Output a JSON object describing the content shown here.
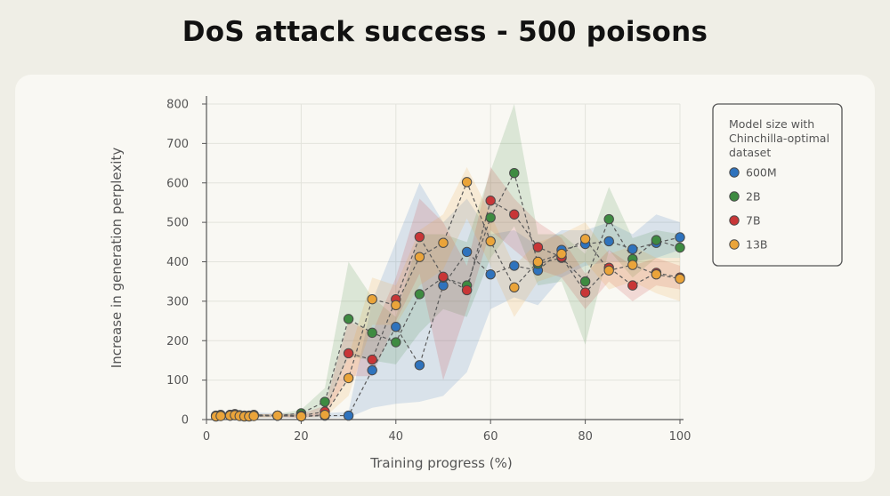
{
  "header": {
    "title": "DoS attack success - 500 poisons"
  },
  "colors": {
    "600M": "#2f73bd",
    "2B": "#3e8b41",
    "7B": "#c83637",
    "13B": "#eaa43a",
    "axis": "#555555",
    "grid": "#e3e3dc"
  },
  "chart_data": {
    "type": "line",
    "title": "DoS attack success - 500 poisons",
    "xlabel": "Training progress (%)",
    "ylabel": "Increase in generation perplexity",
    "xlim": [
      0,
      100
    ],
    "ylim": [
      0,
      800
    ],
    "xticks": [
      0,
      20,
      40,
      60,
      80,
      100
    ],
    "yticks": [
      0,
      100,
      200,
      300,
      400,
      500,
      600,
      700,
      800
    ],
    "grid": true,
    "legend": {
      "title": "Model size with Chinchilla-optimal dataset",
      "title_lines": [
        "Model size with",
        "Chinchilla-optimal",
        "dataset"
      ],
      "position": "right",
      "entries": [
        "600M",
        "2B",
        "7B",
        "13B"
      ]
    },
    "series": [
      {
        "name": "600M",
        "color": "#2f73bd",
        "x": [
          2,
          3,
          5,
          6,
          7,
          8,
          9,
          10,
          15,
          20,
          25,
          30,
          35,
          40,
          45,
          50,
          55,
          60,
          65,
          70,
          75,
          80,
          85,
          90,
          95,
          100
        ],
        "y": [
          8,
          10,
          12,
          14,
          10,
          8,
          10,
          12,
          10,
          8,
          10,
          10,
          125,
          235,
          138,
          340,
          425,
          368,
          390,
          378,
          430,
          445,
          452,
          432,
          448,
          462
        ],
        "lower": [
          4,
          5,
          6,
          7,
          5,
          4,
          5,
          6,
          5,
          4,
          5,
          5,
          30,
          40,
          45,
          60,
          120,
          280,
          310,
          290,
          360,
          390,
          400,
          400,
          410,
          430
        ],
        "upper": [
          14,
          16,
          18,
          20,
          16,
          14,
          16,
          18,
          16,
          14,
          16,
          20,
          300,
          450,
          600,
          500,
          560,
          470,
          480,
          440,
          480,
          480,
          500,
          470,
          520,
          500
        ]
      },
      {
        "name": "2B",
        "color": "#3e8b41",
        "x": [
          2,
          3,
          5,
          6,
          7,
          8,
          9,
          10,
          15,
          20,
          25,
          30,
          35,
          40,
          45,
          50,
          55,
          60,
          65,
          70,
          75,
          80,
          85,
          90,
          95,
          100
        ],
        "y": [
          10,
          12,
          10,
          12,
          11,
          10,
          9,
          10,
          10,
          16,
          45,
          255,
          220,
          196,
          318,
          360,
          340,
          512,
          625,
          395,
          410,
          350,
          508,
          407,
          455,
          436
        ],
        "lower": [
          6,
          7,
          6,
          7,
          6,
          6,
          5,
          6,
          6,
          10,
          20,
          160,
          150,
          140,
          220,
          280,
          260,
          410,
          490,
          340,
          350,
          190,
          430,
          360,
          410,
          410
        ],
        "upper": [
          14,
          16,
          14,
          16,
          15,
          14,
          13,
          14,
          14,
          25,
          80,
          400,
          310,
          260,
          470,
          470,
          450,
          630,
          800,
          470,
          470,
          420,
          590,
          460,
          480,
          470
        ]
      },
      {
        "name": "7B",
        "color": "#c83637",
        "x": [
          2,
          3,
          5,
          6,
          7,
          8,
          9,
          10,
          15,
          20,
          25,
          30,
          35,
          40,
          45,
          50,
          55,
          60,
          65,
          70,
          75,
          80,
          85,
          90,
          95,
          100
        ],
        "y": [
          9,
          10,
          12,
          13,
          10,
          9,
          8,
          10,
          10,
          10,
          20,
          168,
          152,
          305,
          463,
          362,
          328,
          555,
          520,
          437,
          412,
          322,
          385,
          340,
          372,
          360
        ],
        "lower": [
          5,
          6,
          7,
          8,
          6,
          5,
          4,
          6,
          6,
          5,
          10,
          110,
          110,
          250,
          370,
          100,
          280,
          480,
          430,
          380,
          360,
          280,
          350,
          300,
          340,
          330
        ],
        "upper": [
          13,
          14,
          17,
          18,
          14,
          13,
          12,
          14,
          14,
          15,
          35,
          250,
          220,
          360,
          560,
          500,
          390,
          640,
          560,
          500,
          460,
          370,
          430,
          390,
          410,
          390
        ]
      },
      {
        "name": "13B",
        "color": "#eaa43a",
        "x": [
          2,
          3,
          5,
          6,
          7,
          8,
          9,
          10,
          15,
          20,
          25,
          30,
          35,
          40,
          45,
          50,
          55,
          60,
          65,
          70,
          75,
          80,
          85,
          90,
          95,
          100
        ],
        "y": [
          8,
          9,
          10,
          11,
          9,
          8,
          8,
          9,
          10,
          8,
          12,
          105,
          305,
          290,
          412,
          448,
          602,
          452,
          335,
          400,
          420,
          458,
          378,
          392,
          368,
          357
        ],
        "lower": [
          4,
          5,
          6,
          7,
          5,
          4,
          4,
          5,
          6,
          4,
          6,
          60,
          240,
          240,
          340,
          380,
          510,
          390,
          260,
          350,
          370,
          400,
          330,
          350,
          320,
          300
        ],
        "upper": [
          12,
          13,
          14,
          15,
          13,
          12,
          12,
          13,
          14,
          12,
          20,
          160,
          360,
          340,
          480,
          520,
          640,
          520,
          390,
          450,
          470,
          500,
          420,
          440,
          410,
          410
        ]
      }
    ]
  }
}
